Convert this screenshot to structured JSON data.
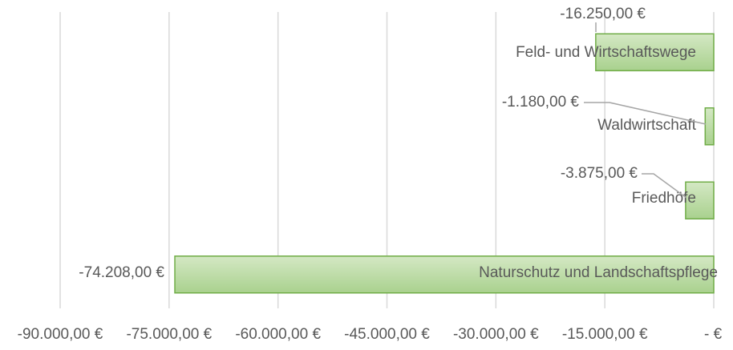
{
  "chart_data": {
    "type": "bar",
    "orientation": "horizontal",
    "categories": [
      "Feld- und Wirtschaftswege",
      "Waldwirtschaft",
      "Friedhöfe",
      "Naturschutz und Landschaftspflege"
    ],
    "values": [
      -16250,
      -1180,
      -3875,
      -74208
    ],
    "value_labels": [
      "-16.250,00 €",
      "-1.180,00 €",
      "-3.875,00 €",
      "-74.208,00 €"
    ],
    "color": "#a9d18e",
    "xlim": [
      -90000,
      0
    ],
    "xticks": [
      {
        "value": -90000,
        "label": "-90.000,00 €"
      },
      {
        "value": -75000,
        "label": "-75.000,00 €"
      },
      {
        "value": -60000,
        "label": "-60.000,00 €"
      },
      {
        "value": -45000,
        "label": "-45.000,00 €"
      },
      {
        "value": -30000,
        "label": "-30.000,00 €"
      },
      {
        "value": -15000,
        "label": "-15.000,00 €"
      },
      {
        "value": 0,
        "label": "-   €"
      }
    ],
    "grid": true
  }
}
